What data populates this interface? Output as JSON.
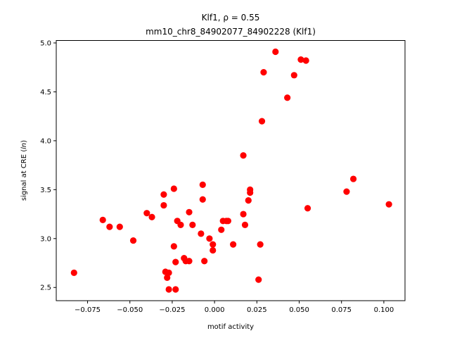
{
  "chart_data": {
    "type": "scatter",
    "title_line1": "Klf1, ρ = 0.55",
    "title_line2": "mm10_chr8_84902077_84902228 (Klf1)",
    "xlabel": "motif activity",
    "ylabel": "signal at CRE (ln)",
    "ylabel_prefix": "signal at CRE (",
    "ylabel_var": "ln",
    "ylabel_suffix": ")",
    "xlim": [
      -0.0935,
      0.1125
    ],
    "ylim": [
      2.365,
      5.025
    ],
    "xticks": [
      -0.075,
      -0.05,
      -0.025,
      0.0,
      0.025,
      0.05,
      0.075,
      0.1
    ],
    "xtick_labels": [
      "−0.075",
      "−0.050",
      "−0.025",
      "0.000",
      "0.025",
      "0.050",
      "0.075",
      "0.100"
    ],
    "yticks": [
      2.5,
      3.0,
      3.5,
      4.0,
      4.5,
      5.0
    ],
    "ytick_labels": [
      "2.5",
      "3.0",
      "3.5",
      "4.0",
      "4.5",
      "5.0"
    ],
    "marker_color": "#ff0000",
    "grid": false,
    "points": [
      {
        "x": -0.083,
        "y": 2.65
      },
      {
        "x": -0.066,
        "y": 3.19
      },
      {
        "x": -0.062,
        "y": 3.12
      },
      {
        "x": -0.056,
        "y": 3.12
      },
      {
        "x": -0.048,
        "y": 2.98
      },
      {
        "x": -0.04,
        "y": 3.26
      },
      {
        "x": -0.037,
        "y": 3.22
      },
      {
        "x": -0.03,
        "y": 3.45
      },
      {
        "x": -0.03,
        "y": 3.34
      },
      {
        "x": -0.029,
        "y": 2.66
      },
      {
        "x": -0.028,
        "y": 2.6
      },
      {
        "x": -0.027,
        "y": 2.48
      },
      {
        "x": -0.027,
        "y": 2.65
      },
      {
        "x": -0.024,
        "y": 3.51
      },
      {
        "x": -0.024,
        "y": 2.92
      },
      {
        "x": -0.023,
        "y": 2.48
      },
      {
        "x": -0.023,
        "y": 2.76
      },
      {
        "x": -0.022,
        "y": 3.18
      },
      {
        "x": -0.02,
        "y": 3.14
      },
      {
        "x": -0.018,
        "y": 2.8
      },
      {
        "x": -0.017,
        "y": 2.77
      },
      {
        "x": -0.015,
        "y": 3.27
      },
      {
        "x": -0.015,
        "y": 2.77
      },
      {
        "x": -0.013,
        "y": 3.14
      },
      {
        "x": -0.008,
        "y": 3.05
      },
      {
        "x": -0.007,
        "y": 3.55
      },
      {
        "x": -0.007,
        "y": 3.4
      },
      {
        "x": -0.006,
        "y": 2.77
      },
      {
        "x": -0.003,
        "y": 3.0
      },
      {
        "x": -0.001,
        "y": 2.94
      },
      {
        "x": -0.001,
        "y": 2.88
      },
      {
        "x": 0.004,
        "y": 3.09
      },
      {
        "x": 0.005,
        "y": 3.18
      },
      {
        "x": 0.007,
        "y": 3.18
      },
      {
        "x": 0.008,
        "y": 3.18
      },
      {
        "x": 0.011,
        "y": 2.94
      },
      {
        "x": 0.017,
        "y": 3.85
      },
      {
        "x": 0.017,
        "y": 3.25
      },
      {
        "x": 0.018,
        "y": 3.14
      },
      {
        "x": 0.02,
        "y": 3.39
      },
      {
        "x": 0.021,
        "y": 3.5
      },
      {
        "x": 0.021,
        "y": 3.47
      },
      {
        "x": 0.026,
        "y": 2.58
      },
      {
        "x": 0.027,
        "y": 2.94
      },
      {
        "x": 0.028,
        "y": 4.2
      },
      {
        "x": 0.029,
        "y": 4.7
      },
      {
        "x": 0.036,
        "y": 4.91
      },
      {
        "x": 0.043,
        "y": 4.44
      },
      {
        "x": 0.047,
        "y": 4.67
      },
      {
        "x": 0.051,
        "y": 4.83
      },
      {
        "x": 0.054,
        "y": 4.82
      },
      {
        "x": 0.055,
        "y": 3.31
      },
      {
        "x": 0.078,
        "y": 3.48
      },
      {
        "x": 0.082,
        "y": 3.61
      },
      {
        "x": 0.103,
        "y": 3.35
      }
    ]
  }
}
